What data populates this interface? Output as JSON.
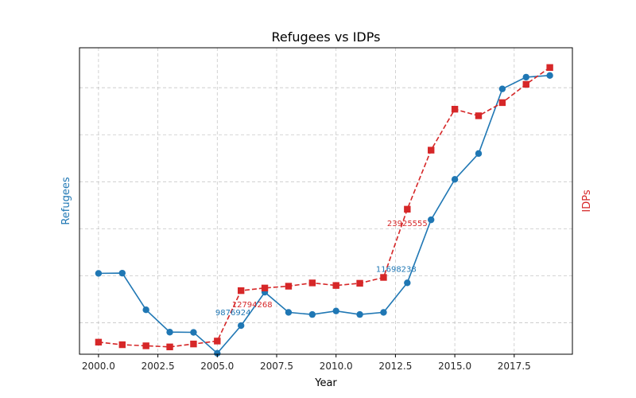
{
  "chart_data": {
    "type": "line",
    "title": "Refugees vs IDPs",
    "xlabel": "Year",
    "ylabel_left": "Refugees",
    "ylabel_right": "IDPs",
    "x": [
      2000,
      2001,
      2002,
      2003,
      2004,
      2005,
      2006,
      2007,
      2008,
      2009,
      2010,
      2011,
      2012,
      2013,
      2014,
      2015,
      2016,
      2017,
      2018,
      2019
    ],
    "x_ticks": [
      "2000.0",
      "2002.5",
      "2005.0",
      "2007.5",
      "2010.0",
      "2012.5",
      "2015.0",
      "2017.5"
    ],
    "x_tick_values": [
      2000,
      2002.5,
      2005,
      2007.5,
      2010,
      2012.5,
      2015,
      2017.5
    ],
    "xlim": [
      1999.2,
      2019.95
    ],
    "grid": true,
    "y_ticks_shown": false,
    "series": [
      {
        "name": "Refugees",
        "axis": "left",
        "color": "#1f77b4",
        "linestyle": "solid",
        "marker": "circle",
        "values": [
          12100000,
          12110000,
          10550000,
          9600000,
          9590000,
          8700000,
          9876924,
          11300000,
          10440000,
          10350000,
          10500000,
          10350000,
          10440000,
          11698238,
          14380000,
          16100000,
          17200000,
          19950000,
          20450000,
          20520000
        ]
      },
      {
        "name": "IDPs",
        "axis": "right",
        "color": "#d62728",
        "linestyle": "dashed",
        "marker": "square",
        "values": [
          5750000,
          5400000,
          5250000,
          5100000,
          5500000,
          5900000,
          12794268,
          13150000,
          13400000,
          13850000,
          13500000,
          13800000,
          14600000,
          23925555,
          32000000,
          37600000,
          36700000,
          38500000,
          41000000,
          43300000
        ]
      }
    ],
    "ylim_left": [
      8660000,
      21700000
    ],
    "ylim_right": [
      4100000,
      46000000
    ],
    "annotations": [
      {
        "text": "9876924",
        "series": "Refugees",
        "x": 2006
      },
      {
        "text": "12794268",
        "series": "IDPs",
        "x": 2006
      },
      {
        "text": "11698238",
        "series": "Refugees",
        "x": 2013
      },
      {
        "text": "23925555",
        "series": "IDPs",
        "x": 2013
      }
    ]
  }
}
